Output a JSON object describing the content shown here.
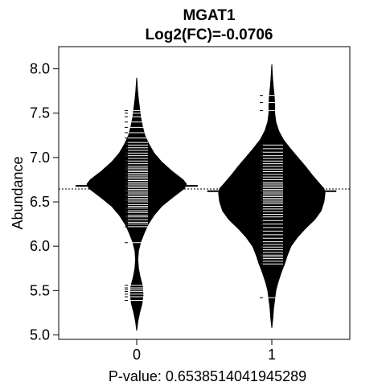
{
  "chart_data": {
    "type": "beanplot",
    "title": "MGAT1",
    "subtitle": "Log2(FC)=-0.0706",
    "xlabel": "P-value: 0.6538514041945289",
    "ylabel": "Abundance",
    "categories": [
      "0",
      "1"
    ],
    "ylim": [
      4.95,
      8.25
    ],
    "yticks": [
      5.0,
      5.5,
      6.0,
      6.5,
      7.0,
      7.5,
      8.0
    ],
    "ytick_labels": [
      "5.0",
      "5.5",
      "6.0",
      "6.5",
      "7.0",
      "7.5",
      "8.0"
    ],
    "overall_mean": 6.645,
    "grid": false,
    "groups": [
      {
        "name": "0",
        "mean": 6.68,
        "min": 5.05,
        "max": 7.9,
        "density": [
          [
            5.05,
            0.0
          ],
          [
            5.15,
            0.02
          ],
          [
            5.25,
            0.05
          ],
          [
            5.35,
            0.09
          ],
          [
            5.45,
            0.11
          ],
          [
            5.55,
            0.1
          ],
          [
            5.65,
            0.06
          ],
          [
            5.75,
            0.03
          ],
          [
            5.85,
            0.02
          ],
          [
            5.95,
            0.03
          ],
          [
            6.05,
            0.07
          ],
          [
            6.15,
            0.13
          ],
          [
            6.25,
            0.2
          ],
          [
            6.35,
            0.3
          ],
          [
            6.45,
            0.43
          ],
          [
            6.55,
            0.62
          ],
          [
            6.65,
            0.82
          ],
          [
            6.7,
            0.86
          ],
          [
            6.75,
            0.8
          ],
          [
            6.85,
            0.6
          ],
          [
            6.95,
            0.43
          ],
          [
            7.05,
            0.3
          ],
          [
            7.15,
            0.21
          ],
          [
            7.25,
            0.14
          ],
          [
            7.35,
            0.1
          ],
          [
            7.45,
            0.07
          ],
          [
            7.55,
            0.05
          ],
          [
            7.65,
            0.03
          ],
          [
            7.75,
            0.015
          ],
          [
            7.9,
            0.0
          ]
        ],
        "points": [
          5.39,
          5.43,
          5.46,
          5.49,
          5.51,
          5.53,
          5.56,
          6.04,
          6.22,
          6.25,
          6.27,
          6.3,
          6.33,
          6.35,
          6.38,
          6.4,
          6.43,
          6.45,
          6.47,
          6.5,
          6.52,
          6.54,
          6.56,
          6.58,
          6.6,
          6.62,
          6.64,
          6.66,
          6.68,
          6.7,
          6.72,
          6.74,
          6.76,
          6.78,
          6.8,
          6.82,
          6.84,
          6.86,
          6.88,
          6.9,
          6.93,
          6.96,
          6.99,
          7.02,
          7.05,
          7.08,
          7.11,
          7.14,
          7.17,
          7.22,
          7.28,
          7.34,
          7.4,
          7.46,
          7.5,
          7.53
        ]
      },
      {
        "name": "1",
        "mean": 6.62,
        "min": 5.08,
        "max": 8.05,
        "density": [
          [
            5.08,
            0.0
          ],
          [
            5.2,
            0.02
          ],
          [
            5.3,
            0.03
          ],
          [
            5.4,
            0.05
          ],
          [
            5.5,
            0.07
          ],
          [
            5.6,
            0.11
          ],
          [
            5.7,
            0.16
          ],
          [
            5.8,
            0.22
          ],
          [
            5.9,
            0.27
          ],
          [
            6.0,
            0.33
          ],
          [
            6.1,
            0.44
          ],
          [
            6.2,
            0.58
          ],
          [
            6.3,
            0.74
          ],
          [
            6.4,
            0.85
          ],
          [
            6.5,
            0.9
          ],
          [
            6.6,
            0.92
          ],
          [
            6.65,
            0.9
          ],
          [
            6.7,
            0.83
          ],
          [
            6.8,
            0.7
          ],
          [
            6.9,
            0.58
          ],
          [
            7.0,
            0.45
          ],
          [
            7.1,
            0.32
          ],
          [
            7.2,
            0.2
          ],
          [
            7.3,
            0.12
          ],
          [
            7.4,
            0.07
          ],
          [
            7.5,
            0.05
          ],
          [
            7.6,
            0.05
          ],
          [
            7.7,
            0.04
          ],
          [
            7.8,
            0.025
          ],
          [
            7.9,
            0.012
          ],
          [
            8.05,
            0.0
          ]
        ],
        "points": [
          5.42,
          5.8,
          5.83,
          5.86,
          5.88,
          5.9,
          5.93,
          5.96,
          5.99,
          6.02,
          6.05,
          6.09,
          6.13,
          6.17,
          6.21,
          6.25,
          6.29,
          6.33,
          6.36,
          6.39,
          6.42,
          6.45,
          6.48,
          6.5,
          6.52,
          6.54,
          6.56,
          6.58,
          6.6,
          6.62,
          6.64,
          6.66,
          6.68,
          6.7,
          6.72,
          6.75,
          6.78,
          6.81,
          6.84,
          6.87,
          6.9,
          6.93,
          6.96,
          6.99,
          7.02,
          7.06,
          7.1,
          7.14,
          7.53,
          7.62,
          7.7
        ]
      }
    ]
  }
}
